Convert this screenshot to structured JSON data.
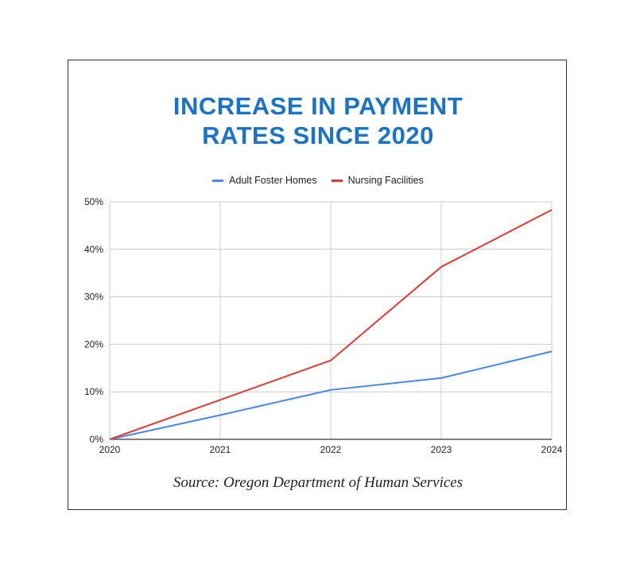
{
  "colors": {
    "title": "#1a73c5",
    "adult_foster": "#4a86e8",
    "nursing": "#e03c31",
    "grid": "#cccccc",
    "axis": "#333333"
  },
  "title_lines": [
    "INCREASE IN PAYMENT",
    "RATES SINCE 2020"
  ],
  "source": "Source: Oregon Department of Human Services",
  "chart_data": {
    "type": "line",
    "title": "INCREASE IN PAYMENT RATES SINCE 2020",
    "xlabel": "",
    "ylabel": "",
    "x": [
      "2020",
      "2021",
      "2022",
      "2023",
      "2024"
    ],
    "ylim": [
      0,
      50
    ],
    "yticks": [
      "0%",
      "10%",
      "20%",
      "30%",
      "40%",
      "50%"
    ],
    "legend_position": "top",
    "grid": true,
    "series": [
      {
        "name": "Adult Foster Homes",
        "color": "#4a86e8",
        "values": [
          0,
          5.1,
          10.4,
          12.9,
          18.5
        ]
      },
      {
        "name": "Nursing Facilities",
        "color": "#e03c31",
        "values": [
          0,
          8.3,
          16.6,
          36.3,
          48.3
        ]
      }
    ]
  }
}
